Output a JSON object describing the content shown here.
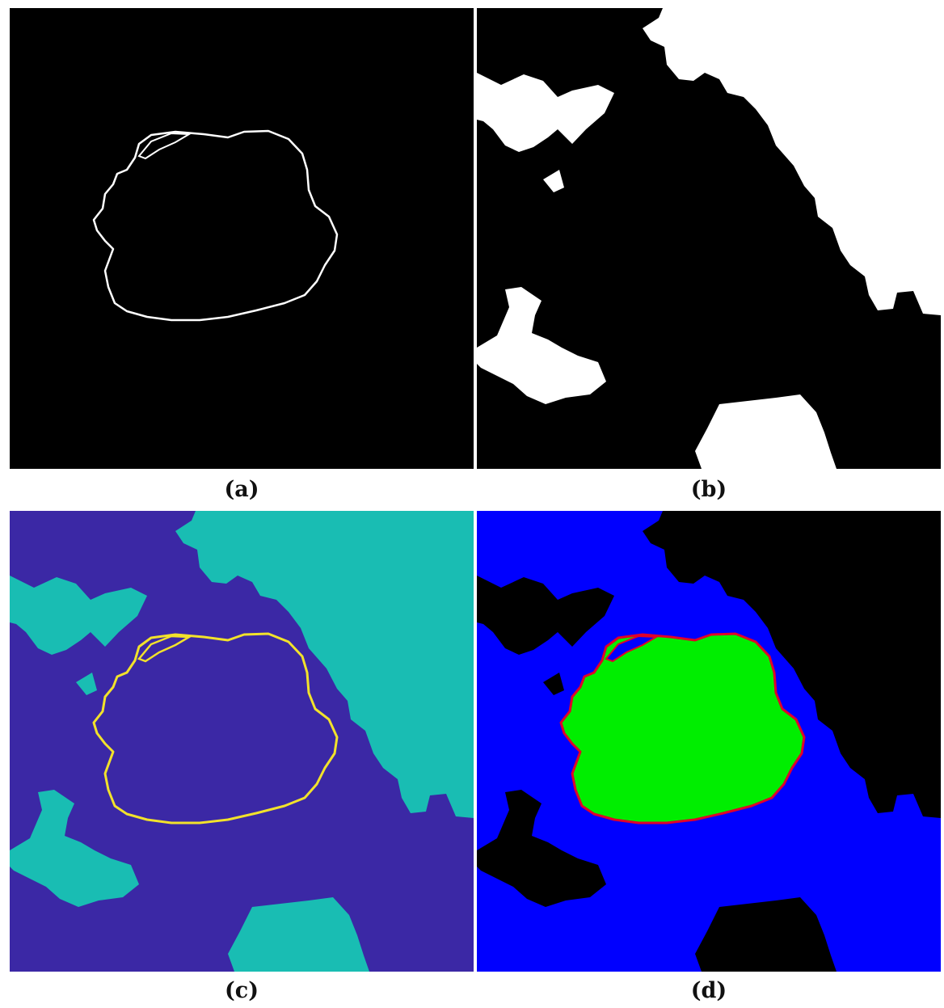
{
  "figure": {
    "panels": [
      {
        "caption": "(a)",
        "content": "lesion-boundary-on-black"
      },
      {
        "caption": "(b)",
        "content": "binary-background-mask"
      },
      {
        "caption": "(c)",
        "content": "boundary-over-mask-overlay"
      },
      {
        "caption": "(d)",
        "content": "segmented-lesion-result"
      }
    ]
  },
  "colors": {
    "background": "#000000",
    "mask_white": "#ffffff",
    "overlay_purple": "#3b28a5",
    "overlay_teal": "#19bdb3",
    "boundary_white": "#ffffff",
    "boundary_yellow": "#f2e22b",
    "segment_blue": "#0000ff",
    "segment_green": "#00ee00",
    "segment_edge_red": "#e0002a"
  }
}
